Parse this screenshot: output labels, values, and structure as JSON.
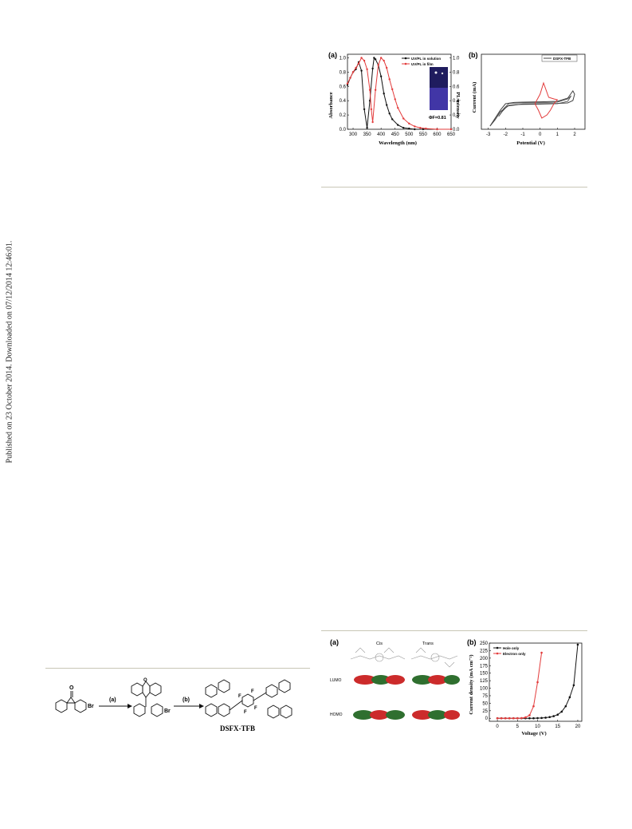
{
  "sidebar_note": "Published on 23 October 2014. Downloaded on 07/12/2014 12:46:01.",
  "figure_top": {
    "panel_a": {
      "label": "(a)",
      "chart_data": {
        "type": "line",
        "xlabel": "Wavelength (nm)",
        "ylabel": "Absorbance",
        "y2label": "PL intensity",
        "xlim": [
          280,
          650
        ],
        "ylim": [
          0,
          1.05
        ],
        "xticks": [
          "300",
          "350",
          "400",
          "450",
          "500",
          "550",
          "600",
          "650"
        ],
        "yticks": [
          "0.0",
          "0.2",
          "0.4",
          "0.6",
          "0.8",
          "1.0"
        ],
        "y2ticks": [
          "0.0",
          "0.2",
          "0.4",
          "0.6",
          "0.8",
          "1.0"
        ],
        "series": [
          {
            "name": "UV/PL in solution",
            "color": "#111111",
            "x": [
              280,
              290,
              300,
              310,
              320,
              330,
              340,
              350,
              360,
              370,
              375,
              380,
              390,
              400,
              410,
              420,
              430,
              440,
              460,
              480,
              500,
              520,
              550,
              600,
              650
            ],
            "y": [
              0.62,
              0.72,
              0.8,
              0.84,
              0.94,
              0.82,
              0.28,
              0.02,
              0.4,
              0.85,
              1.0,
              0.98,
              0.9,
              0.74,
              0.5,
              0.34,
              0.22,
              0.14,
              0.06,
              0.02,
              0.01,
              0,
              0,
              0,
              0
            ]
          },
          {
            "name": "UV/PL in film",
            "color": "#e33b3b",
            "x": [
              280,
              290,
              300,
              310,
              320,
              330,
              340,
              350,
              360,
              365,
              370,
              380,
              390,
              400,
              410,
              420,
              430,
              440,
              450,
              460,
              480,
              500,
              520,
              540,
              560,
              600,
              650
            ],
            "y": [
              0.64,
              0.72,
              0.8,
              0.86,
              0.92,
              1.0,
              0.96,
              0.84,
              0.55,
              0.28,
              0.1,
              0.55,
              0.9,
              1.0,
              0.96,
              0.86,
              0.7,
              0.56,
              0.42,
              0.3,
              0.15,
              0.08,
              0.04,
              0.02,
              0.01,
              0,
              0
            ]
          }
        ],
        "annotations": [
          "ΦF=0.81"
        ],
        "legend": "top-right"
      }
    },
    "panel_b": {
      "label": "(b)",
      "chart_data": {
        "type": "line",
        "xlabel": "Potential (V)",
        "ylabel": "Current (mA)",
        "xlim": [
          -3.4,
          2.6
        ],
        "xticks": [
          "-3",
          "-2",
          "-1",
          "0",
          "1",
          "2"
        ],
        "series": [
          {
            "name": "DSFX-TFB",
            "color": "#444444"
          }
        ],
        "legend": "top-right"
      }
    }
  },
  "scheme": {
    "step_a": "(a)",
    "step_b": "(b)",
    "br1": "Br",
    "br2": "Br",
    "product_label": "DSFX-TFB",
    "f_labels": [
      "F",
      "F",
      "F",
      "F"
    ]
  },
  "figure_bottom": {
    "panel_a": {
      "label": "(a)",
      "col_cis": "Cis",
      "col_trans": "Trans",
      "row_lumo": "LUMO",
      "row_homo": "HOMO"
    },
    "panel_b": {
      "label": "(b)",
      "chart_data": {
        "type": "line",
        "xlabel": "Voltage (V)",
        "ylabel": "Current density (mA cm⁻²)",
        "xlim": [
          -2,
          21
        ],
        "ylim": [
          -10,
          250
        ],
        "xticks": [
          0,
          5,
          10,
          15,
          20
        ],
        "yticks": [
          0,
          25,
          50,
          75,
          100,
          125,
          150,
          175,
          200,
          225,
          250
        ],
        "series": [
          {
            "name": "Hole only",
            "color": "#111111",
            "x": [
              0,
              1,
              2,
              3,
              4,
              5,
              6,
              7,
              8,
              9,
              10,
              11,
              12,
              13,
              14,
              15,
              16,
              17,
              18,
              19,
              20
            ],
            "y": [
              0,
              0,
              0,
              0,
              0,
              0,
              0,
              0,
              0,
              0,
              0.5,
              1,
              2,
              4,
              7,
              12,
              22,
              40,
              70,
              110,
              245
            ]
          },
          {
            "name": "Electron only",
            "color": "#e33b3b",
            "x": [
              0,
              1,
              2,
              3,
              4,
              5,
              6,
              7,
              8,
              9,
              10,
              11
            ],
            "y": [
              0,
              0,
              0,
              0,
              0,
              0,
              0.5,
              3,
              10,
              40,
              120,
              218
            ]
          }
        ],
        "legend": "top-left"
      }
    }
  }
}
